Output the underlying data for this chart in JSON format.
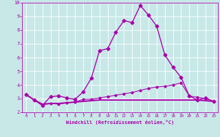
{
  "xlabel": "Windchill (Refroidissement éolien,°C)",
  "xlim": [
    -0.5,
    23.5
  ],
  "ylim": [
    2,
    10
  ],
  "xticks": [
    0,
    1,
    2,
    3,
    4,
    5,
    6,
    7,
    8,
    9,
    10,
    11,
    12,
    13,
    14,
    15,
    16,
    17,
    18,
    19,
    20,
    21,
    22,
    23
  ],
  "yticks": [
    2,
    3,
    4,
    5,
    6,
    7,
    8,
    9,
    10
  ],
  "bg_color": "#c8e8e8",
  "line_color": "#aa00aa",
  "grid_color": "#ffffff",
  "series": [
    {
      "x": [
        0,
        1,
        2,
        3,
        4,
        5,
        6,
        7,
        8,
        9,
        10,
        11,
        12,
        13,
        14,
        15,
        16,
        17,
        18,
        19,
        20,
        21,
        22,
        23
      ],
      "y": [
        3.3,
        2.9,
        2.5,
        3.15,
        3.2,
        3.05,
        2.95,
        3.5,
        4.5,
        6.5,
        6.65,
        7.85,
        8.7,
        8.55,
        9.8,
        9.1,
        8.3,
        6.2,
        5.3,
        4.55,
        3.2,
        2.9,
        3.05,
        2.8
      ],
      "marker": "D",
      "markersize": 2.5,
      "linewidth": 1.0,
      "zorder": 5
    },
    {
      "x": [
        0,
        1,
        2,
        3,
        4,
        5,
        6,
        7,
        8,
        9,
        10,
        11,
        12,
        13,
        14,
        15,
        16,
        17,
        18,
        19,
        20,
        21,
        22,
        23
      ],
      "y": [
        3.3,
        2.9,
        2.55,
        2.65,
        2.6,
        2.7,
        2.75,
        2.95,
        2.95,
        3.05,
        3.15,
        3.25,
        3.35,
        3.45,
        3.6,
        3.75,
        3.85,
        3.9,
        4.0,
        4.15,
        3.2,
        3.1,
        3.0,
        2.8
      ],
      "marker": "D",
      "markersize": 1.8,
      "linewidth": 0.8,
      "zorder": 4
    },
    {
      "x": [
        0,
        1,
        2,
        3,
        4,
        5,
        6,
        7,
        8,
        9,
        10,
        11,
        12,
        13,
        14,
        15,
        16,
        17,
        18,
        19,
        20,
        21,
        22,
        23
      ],
      "y": [
        3.3,
        2.9,
        2.6,
        2.65,
        2.65,
        2.7,
        2.75,
        2.8,
        2.85,
        2.9,
        2.9,
        2.9,
        2.9,
        2.9,
        2.9,
        2.9,
        2.9,
        2.9,
        2.9,
        2.9,
        2.9,
        2.9,
        2.85,
        2.8
      ],
      "marker": null,
      "markersize": 0,
      "linewidth": 1.4,
      "zorder": 3
    }
  ]
}
